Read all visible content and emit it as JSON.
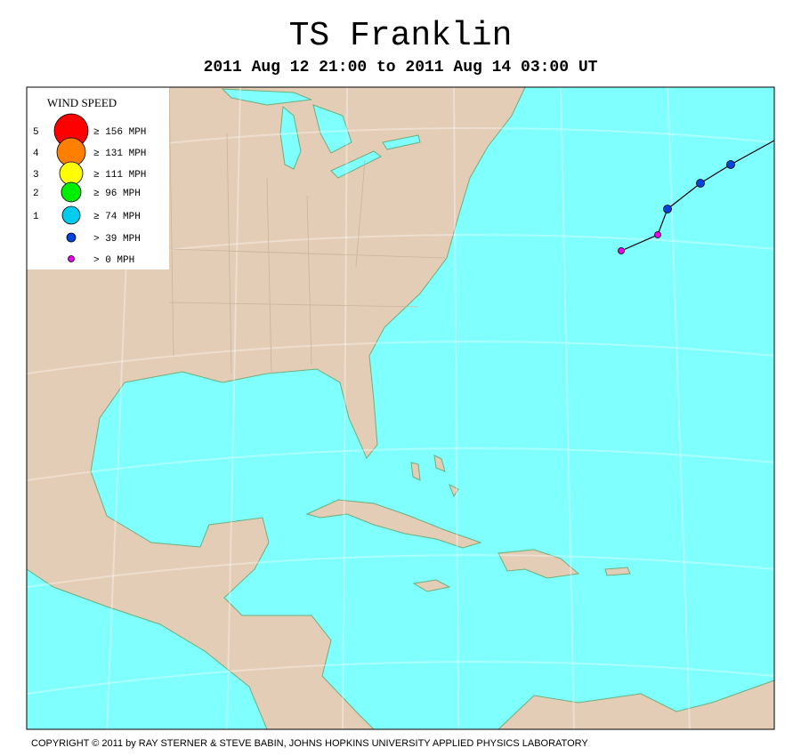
{
  "header": {
    "title": "TS Franklin",
    "subtitle": "2011 Aug 12 21:00 to 2011 Aug 14 03:00 UT"
  },
  "legend": {
    "title": "WIND SPEED",
    "items": [
      {
        "category": "5",
        "label": "≥ 156 MPH",
        "color": "#ff0000"
      },
      {
        "category": "4",
        "label": "≥ 131 MPH",
        "color": "#ff8000"
      },
      {
        "category": "3",
        "label": "≥ 111 MPH",
        "color": "#ffff00"
      },
      {
        "category": "2",
        "label": "≥ 96 MPH",
        "color": "#00ee00"
      },
      {
        "category": "1",
        "label": "≥ 74 MPH",
        "color": "#00ccee"
      },
      {
        "label": "> 39 MPH",
        "color": "#0044dd"
      },
      {
        "label": "> 0 MPH",
        "color": "#ee00ee"
      }
    ]
  },
  "footer": {
    "copyright": "COPYRIGHT © 2011 by RAY STERNER & STEVE BABIN, JOHNS HOPKINS UNIVERSITY APPLIED PHYSICS LABORATORY"
  }
}
